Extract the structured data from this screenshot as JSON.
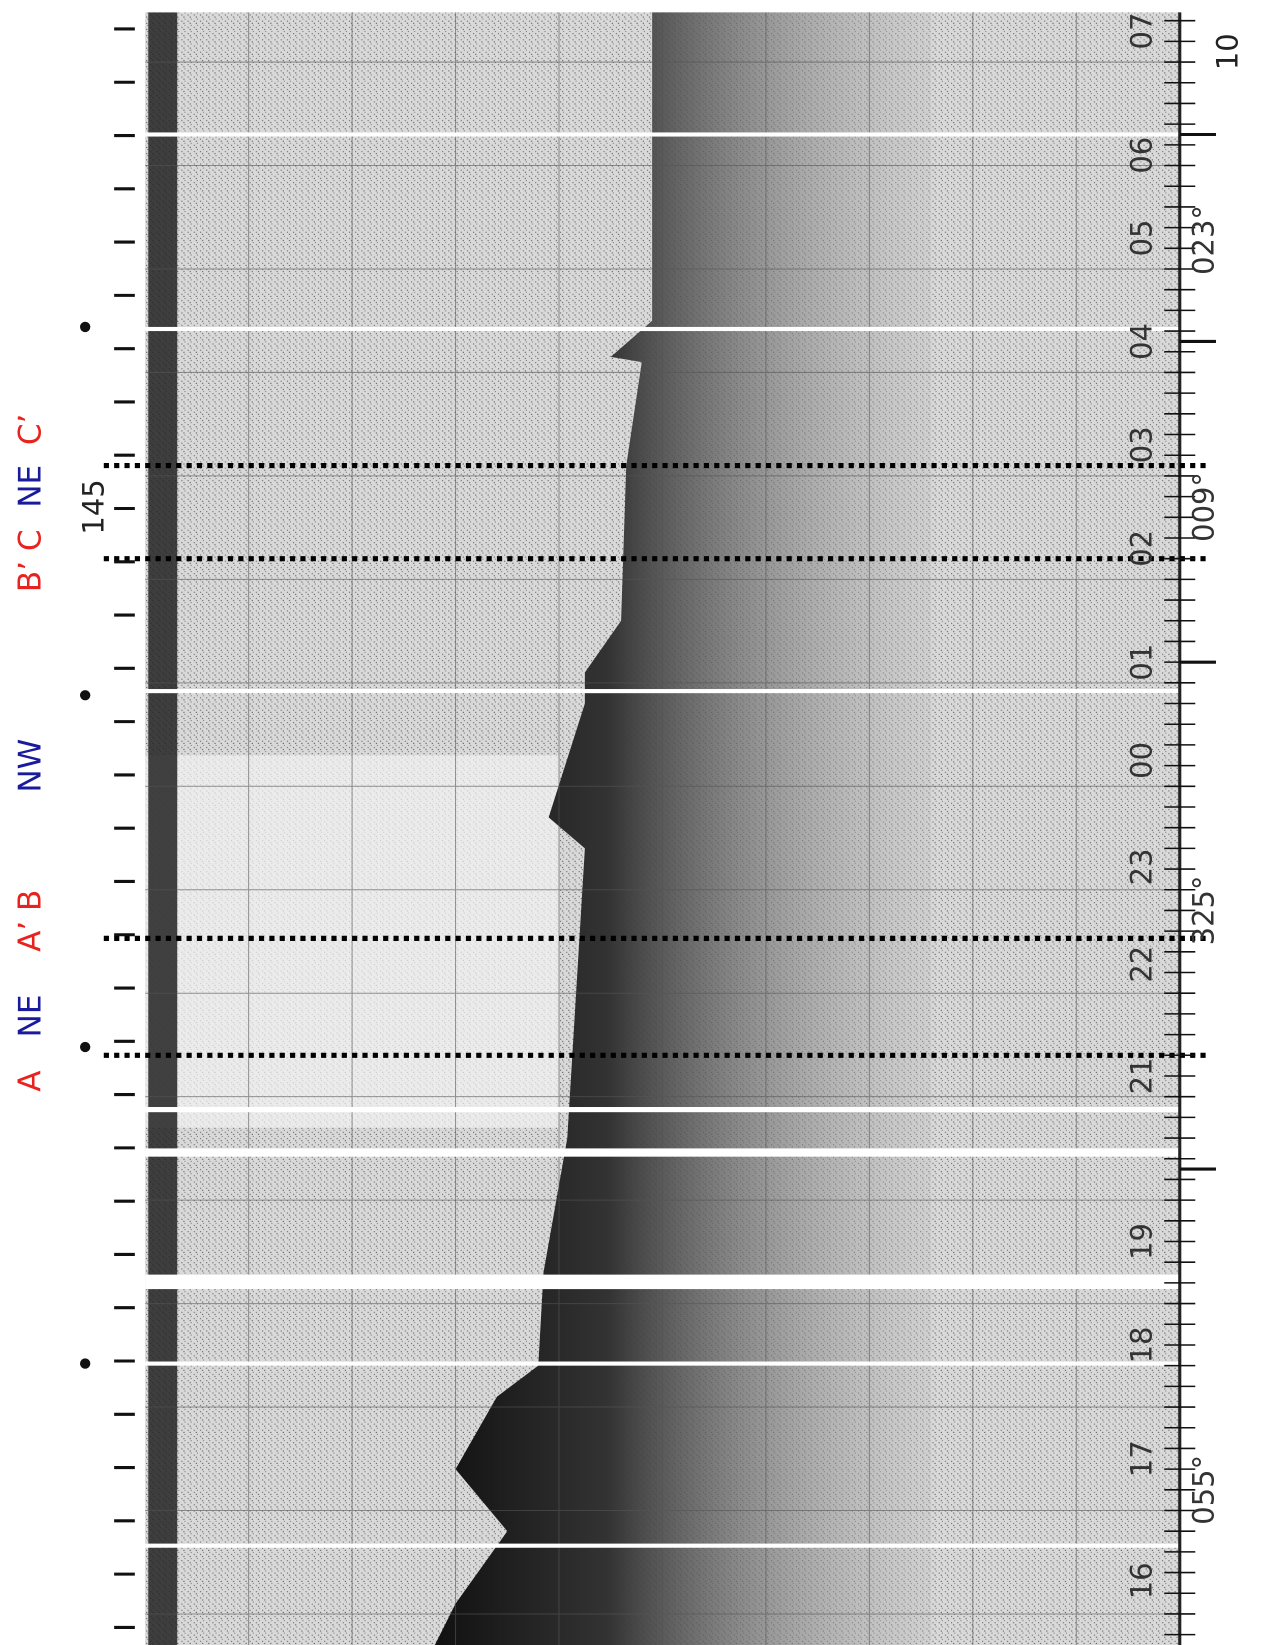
{
  "side_labels": [
    {
      "text": "A",
      "color": "#e8231f"
    },
    {
      "text": "NE",
      "color": "#1a1a9c"
    },
    {
      "text": "A’ B",
      "color": "#e8231f"
    },
    {
      "text": "NW",
      "color": "#1a1a9c"
    },
    {
      "text": "B’ C",
      "color": "#e8231f"
    },
    {
      "text": "NE",
      "color": "#1a1a9c"
    },
    {
      "text": "C’",
      "color": "#e8231f"
    }
  ],
  "record": {
    "depth_label": "145",
    "scale_label": "10",
    "hour_marks": [
      "07",
      "06",
      "05",
      "04",
      "03",
      "02",
      "01",
      "00",
      "23",
      "22",
      "21",
      "19",
      "18",
      "17",
      "16"
    ],
    "headings": [
      "023°",
      "009°",
      "325°",
      "055°"
    ]
  }
}
